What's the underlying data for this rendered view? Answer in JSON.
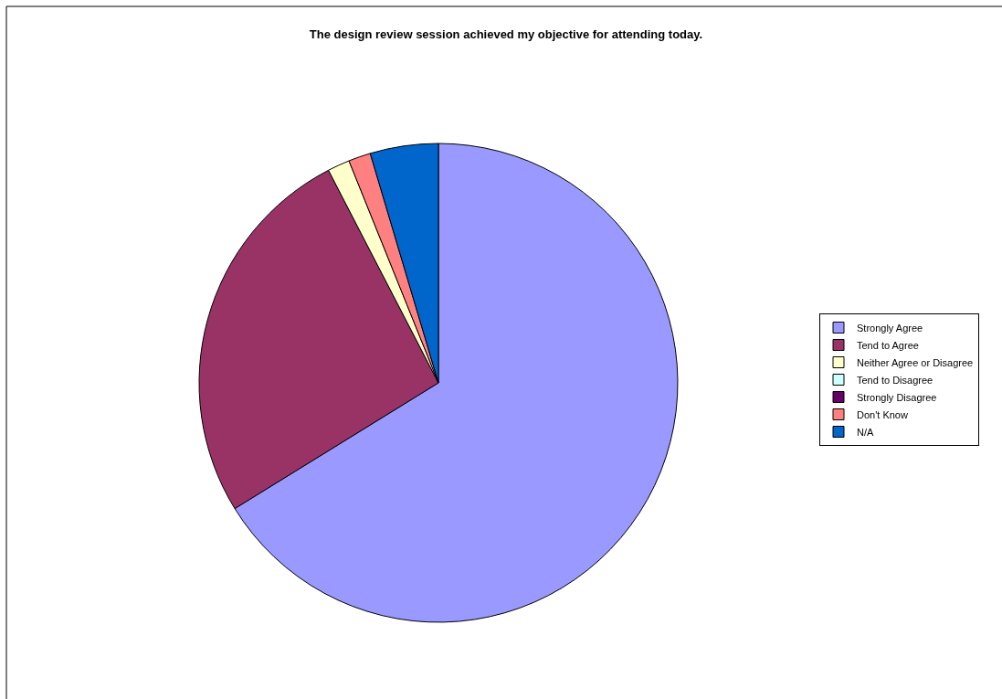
{
  "chart_data": {
    "type": "pie",
    "title": "The design review session achieved my objective for attending today.",
    "categories": [
      "Strongly Agree",
      "Tend to Agree",
      "Neither Agree or Disagree",
      "Tend to Disagree",
      "Strongly Disagree",
      "Don't Know",
      "N/A"
    ],
    "values": [
      66.2,
      26.2,
      1.5,
      0,
      0,
      1.5,
      4.6
    ],
    "colors": [
      "#9999ff",
      "#993366",
      "#ffffcc",
      "#ccffff",
      "#660066",
      "#ff8080",
      "#0066cc"
    ],
    "legend": "right"
  }
}
